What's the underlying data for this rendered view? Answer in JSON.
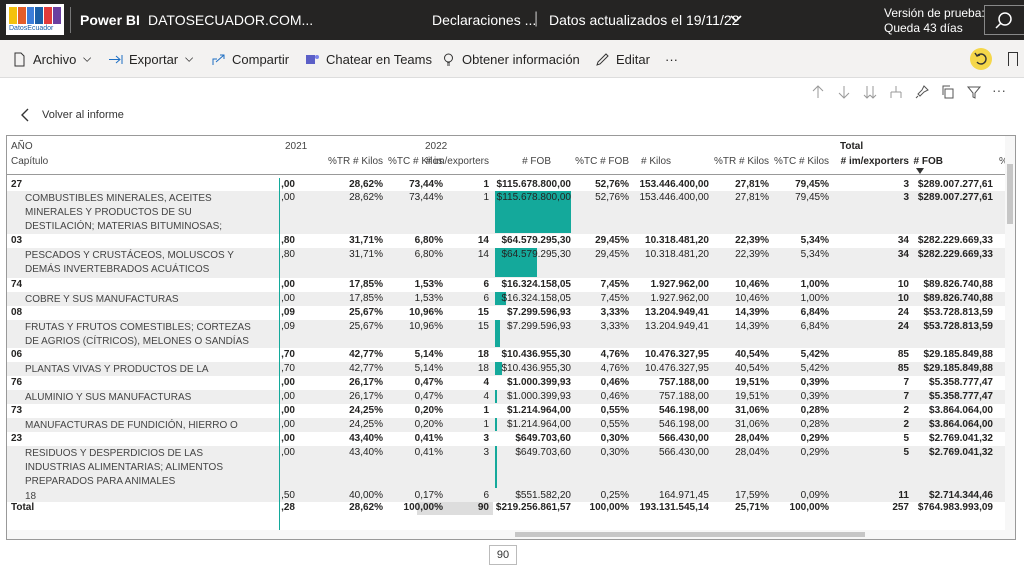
{
  "topbar": {
    "logo_text": "DatosEcuador",
    "app_name": "Power BI",
    "workspace": "DATOSECUADOR.COM...",
    "report_name": "Declaraciones ...",
    "separator": "|",
    "updated": "Datos actualizados el 19/11/22",
    "trial_line1": "Versión de prueba:",
    "trial_line2": "Queda 43 días",
    "accent": "#f5d74a"
  },
  "actions": {
    "file": "Archivo",
    "export": "Exportar",
    "share": "Compartir",
    "teams": "Chatear en Teams",
    "insights": "Obtener información",
    "edit": "Editar",
    "more": "···"
  },
  "back_label": "Volver al informe",
  "table": {
    "header_row1": {
      "year_label": "AÑO",
      "y2021": "2021",
      "y2022": "2022",
      "total": "Total"
    },
    "header_row2": {
      "chapter": "Capítulo",
      "tr_kilos": "%TR # Kilos",
      "tc_kilos": "%TC # Kilos",
      "imexp": "# im/exporters",
      "fob": "# FOB",
      "tc_fob": "%TC # FOB",
      "kilos": "# Kilos",
      "tr_kilos2": "%TR # Kilos",
      "tc_kilos2": "%TC # Kilos",
      "imexp_total": "# im/exporters",
      "fob_total": "# FOB",
      "pct": "%"
    },
    "rows": [
      {
        "label": "27",
        "bold": true,
        "c0": ",00",
        "c1": "28,62%",
        "c2": "73,44%",
        "c3": "1",
        "c4": "$115.678.800,00",
        "c5": "52,76%",
        "c6": "153.446.400,00",
        "c7": "27,81%",
        "c8": "79,45%",
        "c9": "3",
        "c10": "$289.007.277,61"
      },
      {
        "label": "COMBUSTIBLES MINERALES, ACEITES MINERALES Y PRODUCTOS DE SU DESTILACIÓN; MATERIAS BITUMINOSAS; CERAS MINERALES",
        "bold": false,
        "c0": ",00",
        "c1": "28,62%",
        "c2": "73,44%",
        "c3": "1",
        "c4": "$115.678.800,00",
        "c5": "52,76%",
        "c6": "153.446.400,00",
        "c7": "27,81%",
        "c8": "79,45%",
        "c9": "3",
        "c10": "$289.007.277,61",
        "bar": 1.0
      },
      {
        "label": "03",
        "bold": true,
        "c0": ",80",
        "c1": "31,71%",
        "c2": "6,80%",
        "c3": "14",
        "c4": "$64.579.295,30",
        "c5": "29,45%",
        "c6": "10.318.481,20",
        "c7": "22,39%",
        "c8": "5,34%",
        "c9": "34",
        "c10": "$282.229.669,33"
      },
      {
        "label": "PESCADOS Y CRUSTÁCEOS, MOLUSCOS Y DEMÁS INVERTEBRADOS ACUÁTICOS",
        "bold": false,
        "c0": ",80",
        "c1": "31,71%",
        "c2": "6,80%",
        "c3": "14",
        "c4": "$64.579.295,30",
        "c5": "29,45%",
        "c6": "10.318.481,20",
        "c7": "22,39%",
        "c8": "5,34%",
        "c9": "34",
        "c10": "$282.229.669,33",
        "bar": 0.558
      },
      {
        "label": "74",
        "bold": true,
        "c0": ",00",
        "c1": "17,85%",
        "c2": "1,53%",
        "c3": "6",
        "c4": "$16.324.158,05",
        "c5": "7,45%",
        "c6": "1.927.962,00",
        "c7": "10,46%",
        "c8": "1,00%",
        "c9": "10",
        "c10": "$89.826.740,88"
      },
      {
        "label": "COBRE Y SUS MANUFACTURAS",
        "bold": false,
        "c0": ",00",
        "c1": "17,85%",
        "c2": "1,53%",
        "c3": "6",
        "c4": "$16.324.158,05",
        "c5": "7,45%",
        "c6": "1.927.962,00",
        "c7": "10,46%",
        "c8": "1,00%",
        "c9": "10",
        "c10": "$89.826.740,88",
        "bar": 0.141
      },
      {
        "label": "08",
        "bold": true,
        "c0": ",09",
        "c1": "25,67%",
        "c2": "10,96%",
        "c3": "15",
        "c4": "$7.299.596,93",
        "c5": "3,33%",
        "c6": "13.204.949,41",
        "c7": "14,39%",
        "c8": "6,84%",
        "c9": "24",
        "c10": "$53.728.813,59"
      },
      {
        "label": "FRUTAS Y FRUTOS COMESTIBLES; CORTEZAS DE AGRIOS (CÍTRICOS), MELONES O SANDÍAS",
        "bold": false,
        "c0": ",09",
        "c1": "25,67%",
        "c2": "10,96%",
        "c3": "15",
        "c4": "$7.299.596,93",
        "c5": "3,33%",
        "c6": "13.204.949,41",
        "c7": "14,39%",
        "c8": "6,84%",
        "c9": "24",
        "c10": "$53.728.813,59",
        "bar": 0.063
      },
      {
        "label": "06",
        "bold": true,
        "c0": ",70",
        "c1": "42,77%",
        "c2": "5,14%",
        "c3": "18",
        "c4": "$10.436.955,30",
        "c5": "4,76%",
        "c6": "10.476.327,95",
        "c7": "40,54%",
        "c8": "5,42%",
        "c9": "85",
        "c10": "$29.185.849,88"
      },
      {
        "label": "PLANTAS VIVAS Y PRODUCTOS DE LA FLORICULTURA",
        "bold": false,
        "c0": ",70",
        "c1": "42,77%",
        "c2": "5,14%",
        "c3": "18",
        "c4": "$10.436.955,30",
        "c5": "4,76%",
        "c6": "10.476.327,95",
        "c7": "40,54%",
        "c8": "5,42%",
        "c9": "85",
        "c10": "$29.185.849,88",
        "bar": 0.09
      },
      {
        "label": "76",
        "bold": true,
        "c0": ",00",
        "c1": "26,17%",
        "c2": "0,47%",
        "c3": "4",
        "c4": "$1.000.399,93",
        "c5": "0,46%",
        "c6": "757.188,00",
        "c7": "19,51%",
        "c8": "0,39%",
        "c9": "7",
        "c10": "$5.358.777,47"
      },
      {
        "label": "ALUMINIO Y SUS MANUFACTURAS",
        "bold": false,
        "c0": ",00",
        "c1": "26,17%",
        "c2": "0,47%",
        "c3": "4",
        "c4": "$1.000.399,93",
        "c5": "0,46%",
        "c6": "757.188,00",
        "c7": "19,51%",
        "c8": "0,39%",
        "c9": "7",
        "c10": "$5.358.777,47",
        "bar": 0.009
      },
      {
        "label": "73",
        "bold": true,
        "c0": ",00",
        "c1": "24,25%",
        "c2": "0,20%",
        "c3": "1",
        "c4": "$1.214.964,00",
        "c5": "0,55%",
        "c6": "546.198,00",
        "c7": "31,06%",
        "c8": "0,28%",
        "c9": "2",
        "c10": "$3.864.064,00"
      },
      {
        "label": "MANUFACTURAS DE FUNDICIÓN, HIERRO O ACERO",
        "bold": false,
        "c0": ",00",
        "c1": "24,25%",
        "c2": "0,20%",
        "c3": "1",
        "c4": "$1.214.964,00",
        "c5": "0,55%",
        "c6": "546.198,00",
        "c7": "31,06%",
        "c8": "0,28%",
        "c9": "2",
        "c10": "$3.864.064,00",
        "bar": 0.011
      },
      {
        "label": "23",
        "bold": true,
        "c0": ",00",
        "c1": "43,40%",
        "c2": "0,41%",
        "c3": "3",
        "c4": "$649.703,60",
        "c5": "0,30%",
        "c6": "566.430,00",
        "c7": "28,04%",
        "c8": "0,29%",
        "c9": "5",
        "c10": "$2.769.041,32"
      },
      {
        "label": "RESIDUOS Y DESPERDICIOS DE LAS INDUSTRIAS ALIMENTARIAS; ALIMENTOS PREPARADOS PARA ANIMALES",
        "bold": false,
        "c0": ",00",
        "c1": "43,40%",
        "c2": "0,41%",
        "c3": "3",
        "c4": "$649.703,60",
        "c5": "0,30%",
        "c6": "566.430,00",
        "c7": "28,04%",
        "c8": "0,29%",
        "c9": "5",
        "c10": "$2.769.041,32",
        "bar": 0.006
      },
      {
        "label": "18",
        "bold": false,
        "c0": ",50",
        "c1": "40,00%",
        "c2": "0,17%",
        "c3": "6",
        "c4": "$551.582,20",
        "c5": "0,25%",
        "c6": "164.971,45",
        "c7": "17,59%",
        "c8": "0,09%",
        "c9": "11",
        "c10": "$2.714.344,46"
      }
    ],
    "total": {
      "label": "Total",
      "c0": ",28",
      "c1": "28,62%",
      "c2": "100,00%",
      "c3": "90",
      "c4": "$219.256.861,57",
      "c5": "100,00%",
      "c6": "193.131.545,14",
      "c7": "25,71%",
      "c8": "100,00%",
      "c9": "257",
      "c10": "$764.983.993,09"
    }
  },
  "pager_value": "90",
  "teal_color": "#14a99b"
}
